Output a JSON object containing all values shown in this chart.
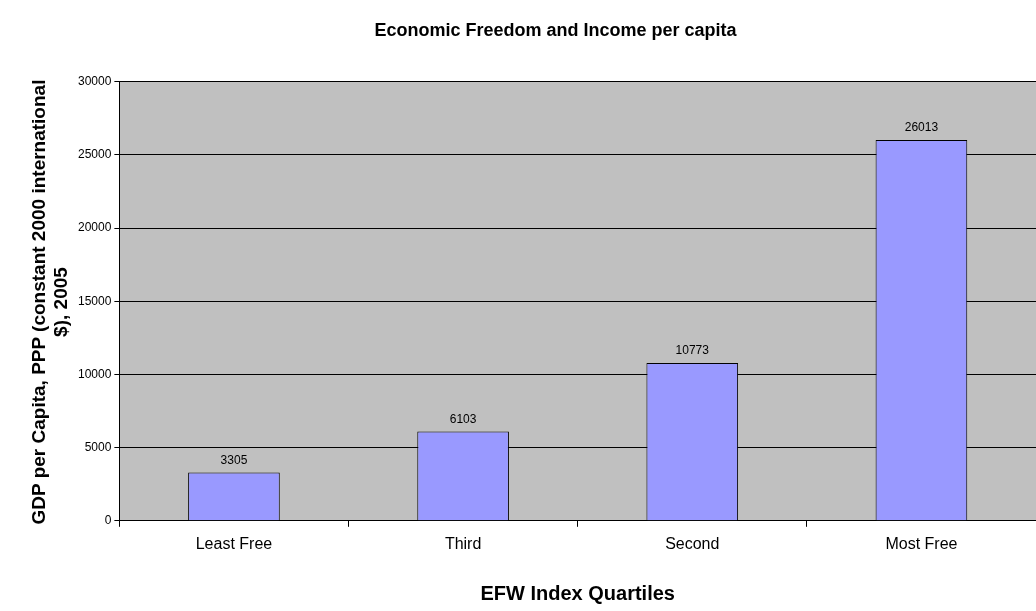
{
  "chart_data": {
    "type": "bar",
    "title": "Economic Freedom and Income per capita",
    "xlabel": "EFW Index Quartiles",
    "ylabel": "GDP per Capita, PPP (constant 2000 international $), 2005",
    "categories": [
      "Least Free",
      "Third",
      "Second",
      "Most Free"
    ],
    "values": [
      3305,
      6103,
      10773,
      26013
    ],
    "color": "#9999ff",
    "ylim": [
      0,
      30000
    ],
    "yticks": [
      0,
      5000,
      10000,
      15000,
      20000,
      25000,
      30000
    ],
    "grid": "y",
    "data_labels": true,
    "legend": false
  }
}
